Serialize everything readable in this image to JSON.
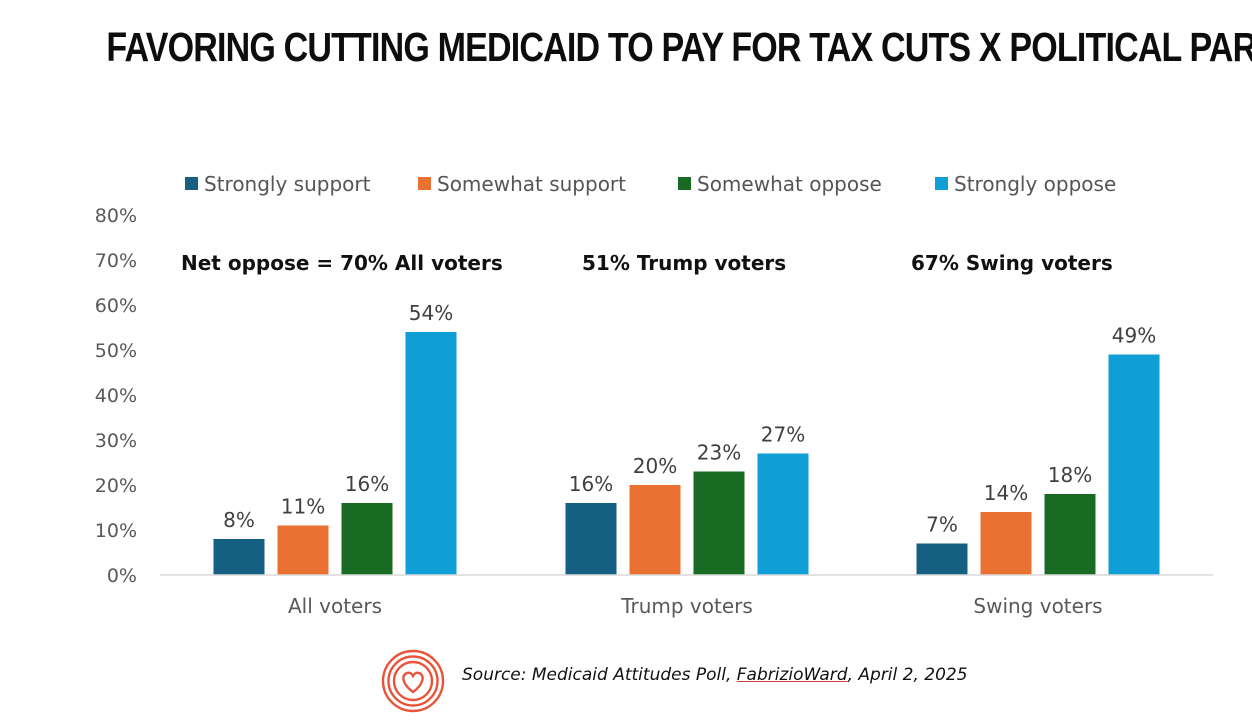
{
  "header": {
    "title": "FAVORING CUTTING MEDICAID TO PAY FOR TAX CUTS X POLITICAL PARTY"
  },
  "chart_data": {
    "type": "bar",
    "title": "FAVORING CUTTING MEDICAID TO PAY FOR TAX CUTS X POLITICAL PARTY",
    "categories": [
      "All voters",
      "Trump voters",
      "Swing voters"
    ],
    "series": [
      {
        "name": "Strongly support",
        "color": "#156082",
        "values": [
          8,
          16,
          7
        ]
      },
      {
        "name": "Somewhat support",
        "color": "#E97132",
        "values": [
          11,
          20,
          14
        ]
      },
      {
        "name": "Somewhat oppose",
        "color": "#196B24",
        "values": [
          16,
          23,
          18
        ]
      },
      {
        "name": "Strongly oppose",
        "color": "#0F9ED5",
        "values": [
          54,
          27,
          49
        ]
      }
    ],
    "ylim": [
      0,
      80
    ],
    "yticks": [
      "0%",
      "10%",
      "20%",
      "30%",
      "40%",
      "50%",
      "60%",
      "70%",
      "80%"
    ],
    "value_suffix": "%",
    "legend_position": "top",
    "grid": false,
    "annotations": [
      "Net oppose = 70% All voters",
      "51% Trump voters",
      "67% Swing voters"
    ]
  },
  "footer": {
    "source_prefix": "Source: Medicaid Attitudes Poll, ",
    "source_org": "FabrizioWard",
    "source_suffix": ", April 2, 2025",
    "logo_icon": "concentric-heart-icon",
    "logo_color": "#E8533A"
  }
}
